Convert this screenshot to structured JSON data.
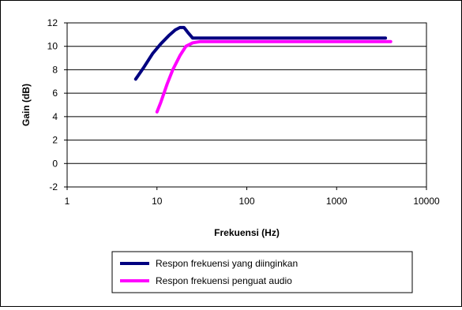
{
  "chart_data": {
    "type": "line",
    "xlabel": "Frekuensi (Hz)",
    "ylabel": "Gain (dB)",
    "x_scale": "log",
    "xlim": [
      1,
      10000
    ],
    "ylim": [
      -2,
      12
    ],
    "grid": "horizontal",
    "legend_position": "bottom",
    "x_ticks": [
      "1",
      "10",
      "100",
      "1000",
      "10000"
    ],
    "y_ticks": [
      "12",
      "10",
      "8",
      "6",
      "4",
      "2",
      "0",
      "-2"
    ],
    "series": [
      {
        "name": "Respon frekuensi yang diinginkan",
        "color": "#000080",
        "points": [
          [
            5.8,
            7.2
          ],
          [
            7,
            8.1
          ],
          [
            9,
            9.4
          ],
          [
            11,
            10.2
          ],
          [
            13.5,
            10.9
          ],
          [
            16,
            11.4
          ],
          [
            18,
            11.6
          ],
          [
            20,
            11.6
          ],
          [
            22,
            11.2
          ],
          [
            25,
            10.7
          ],
          [
            30,
            10.7
          ],
          [
            100,
            10.7
          ],
          [
            1000,
            10.7
          ],
          [
            3500,
            10.7
          ]
        ]
      },
      {
        "name": "Respon frekuensi penguat audio",
        "color": "#ff00ff",
        "points": [
          [
            10,
            4.4
          ],
          [
            11,
            5.2
          ],
          [
            13,
            6.8
          ],
          [
            15,
            8.0
          ],
          [
            18,
            9.2
          ],
          [
            21,
            10.0
          ],
          [
            25,
            10.3
          ],
          [
            30,
            10.4
          ],
          [
            100,
            10.4
          ],
          [
            1000,
            10.4
          ],
          [
            4000,
            10.4
          ]
        ]
      }
    ]
  }
}
